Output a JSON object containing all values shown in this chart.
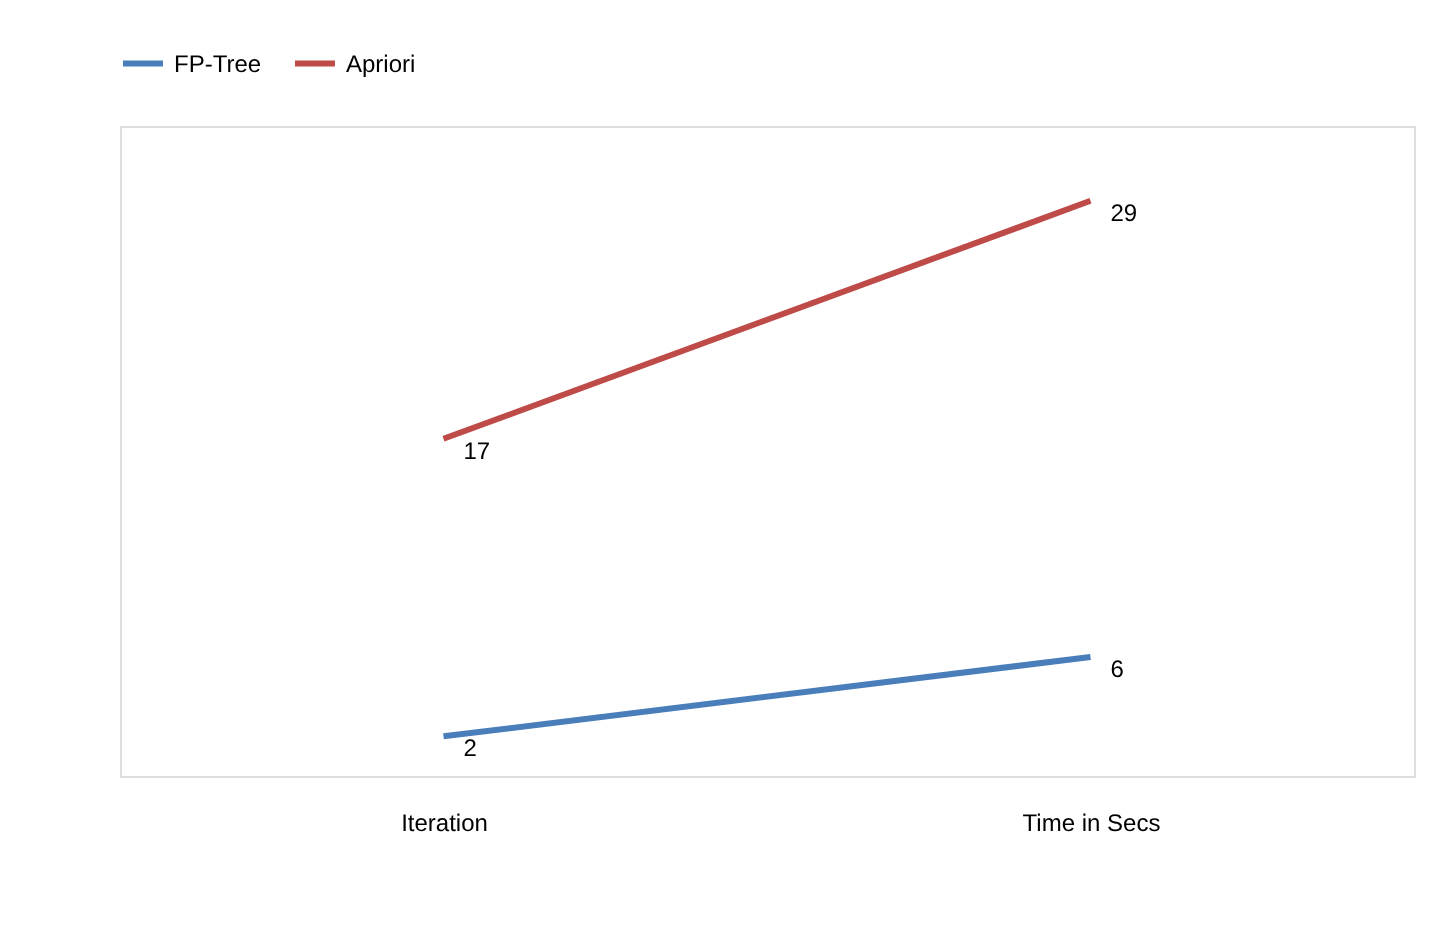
{
  "chart_data": {
    "type": "line",
    "categories": [
      "Iteration",
      "Time in Secs"
    ],
    "series": [
      {
        "name": "FP-Tree",
        "color": "#4a7ebb",
        "values": [
          2,
          6
        ]
      },
      {
        "name": "Apriori",
        "color": "#be4b48",
        "values": [
          17,
          29
        ]
      }
    ],
    "data_labels": true,
    "legend": "top",
    "grid": false,
    "marker": "none",
    "line_style": "solid",
    "tick_labels": "x"
  }
}
